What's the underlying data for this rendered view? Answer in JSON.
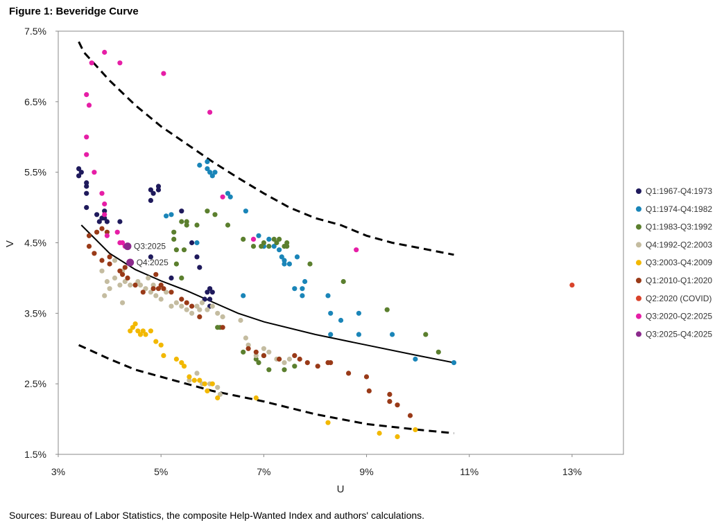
{
  "figure_title": "Figure 1: Beveridge Curve",
  "source_note": "Sources: Bureau of Labor Statistics, the composite Help-Wanted Index and authors' calculations.",
  "chart_data": {
    "type": "scatter",
    "title": "Figure 1: Beveridge Curve",
    "xlabel": "U",
    "ylabel": "V",
    "xlim": [
      3,
      14
    ],
    "ylim": [
      1.5,
      7.5
    ],
    "x_ticks": [
      3,
      5,
      7,
      9,
      11,
      13
    ],
    "x_tick_labels": [
      "3%",
      "5%",
      "7%",
      "9%",
      "11%",
      "13%"
    ],
    "y_ticks": [
      1.5,
      2.5,
      3.5,
      4.5,
      5.5,
      6.5,
      7.5
    ],
    "y_tick_labels": [
      "1.5%",
      "2.5%",
      "3.5%",
      "4.5%",
      "5.5%",
      "6.5%",
      "7.5%"
    ],
    "grid": false,
    "legend_position": "right",
    "series": [
      {
        "name": "Q1:1967-Q4:1973",
        "color": "#1f1a5c",
        "points": [
          [
            3.4,
            5.55
          ],
          [
            3.45,
            5.5
          ],
          [
            3.4,
            5.45
          ],
          [
            3.55,
            5.35
          ],
          [
            3.55,
            5.3
          ],
          [
            3.55,
            5.2
          ],
          [
            3.55,
            5.0
          ],
          [
            3.75,
            4.9
          ],
          [
            3.8,
            4.8
          ],
          [
            3.85,
            4.85
          ],
          [
            3.9,
            4.95
          ],
          [
            3.9,
            4.85
          ],
          [
            3.95,
            4.8
          ],
          [
            4.2,
            4.8
          ],
          [
            4.8,
            5.1
          ],
          [
            4.8,
            5.25
          ],
          [
            4.85,
            5.2
          ],
          [
            4.95,
            5.3
          ],
          [
            4.95,
            5.25
          ],
          [
            5.4,
            4.95
          ],
          [
            5.6,
            4.5
          ],
          [
            5.7,
            4.3
          ],
          [
            5.75,
            4.15
          ],
          [
            4.8,
            4.3
          ],
          [
            5.2,
            4.0
          ],
          [
            5.9,
            3.8
          ],
          [
            5.95,
            3.85
          ],
          [
            6.0,
            3.8
          ],
          [
            5.95,
            3.7
          ],
          [
            5.85,
            3.7
          ],
          [
            5.95,
            3.6
          ]
        ]
      },
      {
        "name": "Q1:1974-Q4:1982",
        "color": "#1a85b8",
        "points": [
          [
            5.75,
            5.6
          ],
          [
            5.9,
            5.65
          ],
          [
            5.9,
            5.55
          ],
          [
            5.95,
            5.5
          ],
          [
            6.0,
            5.45
          ],
          [
            6.05,
            5.5
          ],
          [
            6.3,
            5.2
          ],
          [
            6.35,
            5.15
          ],
          [
            5.1,
            4.88
          ],
          [
            5.2,
            4.9
          ],
          [
            5.7,
            4.5
          ],
          [
            6.65,
            4.95
          ],
          [
            6.6,
            3.75
          ],
          [
            6.9,
            4.6
          ],
          [
            7.1,
            4.55
          ],
          [
            7.2,
            4.45
          ],
          [
            7.3,
            4.4
          ],
          [
            7.35,
            4.3
          ],
          [
            7.4,
            4.2
          ],
          [
            7.4,
            4.25
          ],
          [
            7.5,
            4.2
          ],
          [
            7.65,
            4.3
          ],
          [
            7.6,
            3.85
          ],
          [
            7.75,
            3.75
          ],
          [
            7.75,
            3.85
          ],
          [
            7.8,
            3.95
          ],
          [
            8.25,
            3.75
          ],
          [
            8.3,
            3.2
          ],
          [
            8.3,
            3.5
          ],
          [
            8.5,
            3.4
          ],
          [
            8.85,
            3.5
          ],
          [
            8.85,
            3.2
          ],
          [
            9.5,
            3.2
          ],
          [
            9.95,
            2.85
          ],
          [
            10.7,
            2.8
          ],
          [
            7.0,
            4.45
          ]
        ]
      },
      {
        "name": "Q1:1983-Q3:1992",
        "color": "#5b7f2e",
        "points": [
          [
            5.25,
            4.65
          ],
          [
            5.25,
            4.55
          ],
          [
            5.3,
            4.4
          ],
          [
            5.3,
            4.2
          ],
          [
            5.4,
            4.8
          ],
          [
            5.45,
            4.4
          ],
          [
            5.5,
            4.8
          ],
          [
            5.5,
            4.75
          ],
          [
            5.7,
            4.75
          ],
          [
            5.4,
            4.0
          ],
          [
            5.9,
            4.95
          ],
          [
            6.05,
            4.9
          ],
          [
            6.3,
            4.75
          ],
          [
            6.6,
            4.55
          ],
          [
            6.8,
            4.45
          ],
          [
            6.95,
            4.45
          ],
          [
            7.0,
            4.5
          ],
          [
            7.1,
            4.45
          ],
          [
            7.2,
            4.55
          ],
          [
            7.25,
            4.5
          ],
          [
            7.3,
            4.55
          ],
          [
            7.4,
            4.45
          ],
          [
            7.45,
            4.5
          ],
          [
            7.45,
            4.45
          ],
          [
            7.9,
            4.2
          ],
          [
            8.55,
            3.95
          ],
          [
            9.4,
            3.55
          ],
          [
            10.15,
            3.2
          ],
          [
            10.4,
            2.95
          ],
          [
            6.1,
            3.3
          ],
          [
            6.15,
            3.3
          ],
          [
            6.6,
            2.95
          ],
          [
            6.85,
            2.85
          ],
          [
            6.9,
            2.8
          ],
          [
            7.1,
            2.7
          ],
          [
            7.4,
            2.7
          ],
          [
            7.6,
            2.75
          ],
          [
            7.3,
            2.85
          ],
          [
            7.0,
            2.9
          ]
        ]
      },
      {
        "name": "Q4:1992-Q2:2003",
        "color": "#c4bca0",
        "points": [
          [
            3.85,
            4.1
          ],
          [
            3.95,
            3.95
          ],
          [
            4.0,
            3.85
          ],
          [
            4.1,
            4.0
          ],
          [
            4.2,
            3.9
          ],
          [
            4.25,
            4.1
          ],
          [
            4.3,
            3.95
          ],
          [
            4.4,
            3.9
          ],
          [
            4.5,
            3.9
          ],
          [
            4.55,
            3.95
          ],
          [
            4.6,
            3.9
          ],
          [
            4.7,
            3.85
          ],
          [
            4.75,
            4.0
          ],
          [
            4.8,
            3.8
          ],
          [
            4.85,
            3.9
          ],
          [
            4.9,
            3.75
          ],
          [
            5.0,
            3.7
          ],
          [
            5.1,
            3.8
          ],
          [
            5.2,
            3.6
          ],
          [
            5.3,
            3.65
          ],
          [
            5.4,
            3.6
          ],
          [
            5.5,
            3.55
          ],
          [
            5.6,
            3.5
          ],
          [
            5.7,
            3.6
          ],
          [
            5.75,
            3.55
          ],
          [
            5.8,
            3.65
          ],
          [
            5.9,
            3.55
          ],
          [
            6.0,
            3.6
          ],
          [
            6.1,
            3.5
          ],
          [
            6.2,
            3.45
          ],
          [
            3.9,
            3.75
          ],
          [
            4.25,
            3.65
          ],
          [
            4.1,
            4.25
          ],
          [
            6.55,
            3.4
          ],
          [
            6.65,
            3.15
          ],
          [
            6.7,
            3.05
          ],
          [
            6.85,
            2.9
          ],
          [
            7.0,
            3.0
          ],
          [
            7.1,
            2.95
          ],
          [
            7.25,
            2.85
          ],
          [
            7.4,
            2.8
          ],
          [
            7.5,
            2.85
          ],
          [
            6.15,
            2.35
          ],
          [
            6.1,
            2.45
          ],
          [
            5.95,
            2.5
          ],
          [
            5.8,
            2.5
          ],
          [
            5.7,
            2.65
          ],
          [
            5.55,
            2.55
          ]
        ]
      },
      {
        "name": "Q3:2003-Q4:2009",
        "color": "#f2b800",
        "points": [
          [
            4.4,
            3.25
          ],
          [
            4.45,
            3.3
          ],
          [
            4.5,
            3.35
          ],
          [
            4.55,
            3.25
          ],
          [
            4.6,
            3.2
          ],
          [
            4.65,
            3.25
          ],
          [
            4.7,
            3.2
          ],
          [
            4.8,
            3.25
          ],
          [
            4.9,
            3.1
          ],
          [
            5.0,
            3.05
          ],
          [
            5.05,
            2.9
          ],
          [
            5.3,
            2.85
          ],
          [
            5.4,
            2.8
          ],
          [
            5.45,
            2.75
          ],
          [
            5.55,
            2.6
          ],
          [
            5.65,
            2.55
          ],
          [
            5.75,
            2.55
          ],
          [
            5.85,
            2.5
          ],
          [
            5.9,
            2.4
          ],
          [
            6.0,
            2.5
          ],
          [
            6.1,
            2.3
          ],
          [
            6.85,
            2.3
          ],
          [
            8.25,
            1.95
          ],
          [
            9.25,
            1.8
          ],
          [
            9.6,
            1.75
          ],
          [
            9.95,
            1.85
          ]
        ]
      },
      {
        "name": "Q1:2010-Q1:2020",
        "color": "#993a18",
        "points": [
          [
            9.85,
            2.05
          ],
          [
            9.6,
            2.2
          ],
          [
            9.45,
            2.25
          ],
          [
            9.45,
            2.35
          ],
          [
            9.05,
            2.4
          ],
          [
            9.0,
            2.6
          ],
          [
            8.65,
            2.65
          ],
          [
            8.3,
            2.8
          ],
          [
            8.25,
            2.8
          ],
          [
            8.05,
            2.75
          ],
          [
            7.85,
            2.8
          ],
          [
            7.7,
            2.85
          ],
          [
            7.6,
            2.9
          ],
          [
            7.3,
            2.85
          ],
          [
            7.0,
            2.9
          ],
          [
            6.85,
            2.95
          ],
          [
            6.7,
            3.0
          ],
          [
            6.2,
            3.3
          ],
          [
            5.75,
            3.45
          ],
          [
            5.6,
            3.6
          ],
          [
            5.5,
            3.65
          ],
          [
            5.4,
            3.7
          ],
          [
            5.2,
            3.8
          ],
          [
            5.05,
            3.85
          ],
          [
            5.0,
            3.9
          ],
          [
            4.95,
            3.85
          ],
          [
            4.85,
            3.85
          ],
          [
            4.65,
            3.8
          ],
          [
            4.5,
            3.9
          ],
          [
            4.35,
            4.0
          ],
          [
            4.25,
            4.05
          ],
          [
            4.2,
            4.1
          ],
          [
            4.0,
            4.2
          ],
          [
            3.85,
            4.25
          ],
          [
            3.7,
            4.35
          ],
          [
            3.6,
            4.45
          ],
          [
            3.6,
            4.6
          ],
          [
            3.75,
            4.65
          ],
          [
            3.85,
            4.7
          ],
          [
            3.95,
            4.65
          ],
          [
            4.0,
            4.3
          ],
          [
            4.3,
            4.15
          ],
          [
            4.9,
            4.05
          ]
        ]
      },
      {
        "name": "Q2:2020 (COVID)",
        "color": "#d9432b",
        "points": [
          [
            13.0,
            3.9
          ]
        ]
      },
      {
        "name": "Q3:2020-Q2:2025",
        "color": "#e61ea6",
        "points": [
          [
            3.9,
            7.2
          ],
          [
            3.65,
            7.05
          ],
          [
            4.2,
            7.05
          ],
          [
            5.05,
            6.9
          ],
          [
            3.55,
            6.6
          ],
          [
            3.6,
            6.45
          ],
          [
            5.95,
            6.35
          ],
          [
            3.55,
            6.0
          ],
          [
            3.55,
            5.75
          ],
          [
            3.7,
            5.5
          ],
          [
            3.85,
            5.2
          ],
          [
            3.9,
            5.05
          ],
          [
            3.9,
            4.9
          ],
          [
            3.95,
            4.6
          ],
          [
            4.15,
            4.65
          ],
          [
            4.2,
            4.5
          ],
          [
            4.25,
            4.5
          ],
          [
            4.3,
            4.45
          ],
          [
            6.2,
            5.15
          ],
          [
            6.8,
            4.55
          ],
          [
            8.8,
            4.4
          ]
        ]
      },
      {
        "name": "Q3:2025-Q4:2025",
        "color": "#8b2a8c",
        "points": [
          [
            4.35,
            4.45
          ],
          [
            4.4,
            4.22
          ]
        ]
      }
    ],
    "annotations": [
      {
        "text": "Q3:2025",
        "x": 4.35,
        "y": 4.45
      },
      {
        "text": "Q4:2025",
        "x": 4.4,
        "y": 4.22
      }
    ],
    "curves": {
      "central": [
        [
          3.45,
          4.75
        ],
        [
          4.0,
          4.35
        ],
        [
          4.5,
          4.12
        ],
        [
          5.0,
          3.96
        ],
        [
          5.5,
          3.82
        ],
        [
          6.0,
          3.66
        ],
        [
          6.5,
          3.5
        ],
        [
          7.0,
          3.38
        ],
        [
          8.0,
          3.2
        ],
        [
          9.0,
          3.05
        ],
        [
          10.0,
          2.9
        ],
        [
          10.7,
          2.8
        ]
      ],
      "upper": [
        [
          3.4,
          7.35
        ],
        [
          3.5,
          7.2
        ],
        [
          4.0,
          6.8
        ],
        [
          4.5,
          6.45
        ],
        [
          5.0,
          6.15
        ],
        [
          5.5,
          5.9
        ],
        [
          6.0,
          5.65
        ],
        [
          6.5,
          5.42
        ],
        [
          7.0,
          5.2
        ],
        [
          7.5,
          5.0
        ],
        [
          8.0,
          4.85
        ],
        [
          8.5,
          4.75
        ],
        [
          9.0,
          4.6
        ],
        [
          9.5,
          4.5
        ],
        [
          10.0,
          4.43
        ],
        [
          10.7,
          4.33
        ]
      ],
      "lower": [
        [
          3.4,
          3.05
        ],
        [
          4.0,
          2.85
        ],
        [
          4.5,
          2.7
        ],
        [
          5.0,
          2.6
        ],
        [
          5.5,
          2.5
        ],
        [
          6.0,
          2.4
        ],
        [
          7.0,
          2.25
        ],
        [
          8.0,
          2.07
        ],
        [
          9.0,
          1.93
        ],
        [
          10.0,
          1.85
        ],
        [
          10.7,
          1.8
        ]
      ]
    }
  }
}
